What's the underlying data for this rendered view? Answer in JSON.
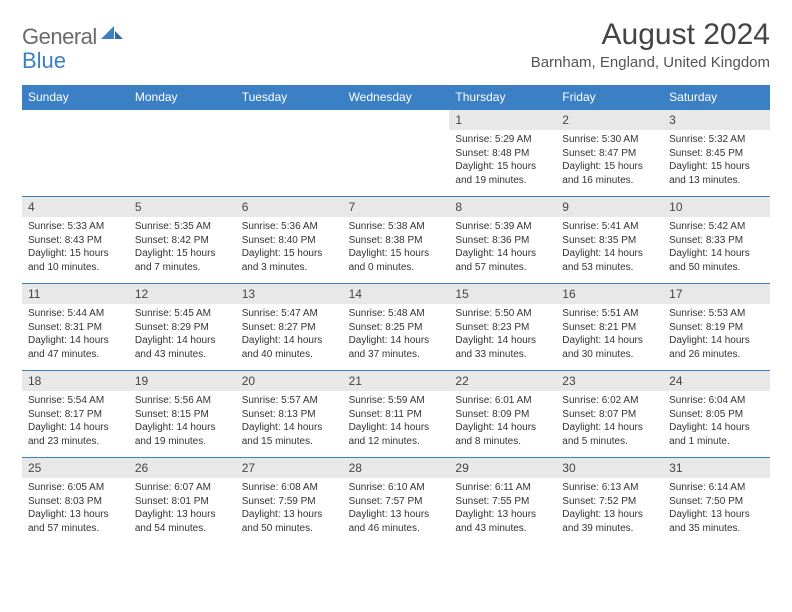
{
  "brand": {
    "text1": "General",
    "text2": "Blue"
  },
  "title": "August 2024",
  "location": "Barnham, England, United Kingdom",
  "colors": {
    "accent": "#3b7fc4",
    "header_bg": "#3b7fc4",
    "daynum_bg": "#e8e8e8",
    "text": "#333333",
    "logo_gray": "#6b6b6b"
  },
  "weekdays": [
    "Sunday",
    "Monday",
    "Tuesday",
    "Wednesday",
    "Thursday",
    "Friday",
    "Saturday"
  ],
  "weeks": [
    [
      {
        "n": "",
        "sunrise": "",
        "sunset": "",
        "daylight1": "",
        "daylight2": ""
      },
      {
        "n": "",
        "sunrise": "",
        "sunset": "",
        "daylight1": "",
        "daylight2": ""
      },
      {
        "n": "",
        "sunrise": "",
        "sunset": "",
        "daylight1": "",
        "daylight2": ""
      },
      {
        "n": "",
        "sunrise": "",
        "sunset": "",
        "daylight1": "",
        "daylight2": ""
      },
      {
        "n": "1",
        "sunrise": "Sunrise: 5:29 AM",
        "sunset": "Sunset: 8:48 PM",
        "daylight1": "Daylight: 15 hours",
        "daylight2": "and 19 minutes."
      },
      {
        "n": "2",
        "sunrise": "Sunrise: 5:30 AM",
        "sunset": "Sunset: 8:47 PM",
        "daylight1": "Daylight: 15 hours",
        "daylight2": "and 16 minutes."
      },
      {
        "n": "3",
        "sunrise": "Sunrise: 5:32 AM",
        "sunset": "Sunset: 8:45 PM",
        "daylight1": "Daylight: 15 hours",
        "daylight2": "and 13 minutes."
      }
    ],
    [
      {
        "n": "4",
        "sunrise": "Sunrise: 5:33 AM",
        "sunset": "Sunset: 8:43 PM",
        "daylight1": "Daylight: 15 hours",
        "daylight2": "and 10 minutes."
      },
      {
        "n": "5",
        "sunrise": "Sunrise: 5:35 AM",
        "sunset": "Sunset: 8:42 PM",
        "daylight1": "Daylight: 15 hours",
        "daylight2": "and 7 minutes."
      },
      {
        "n": "6",
        "sunrise": "Sunrise: 5:36 AM",
        "sunset": "Sunset: 8:40 PM",
        "daylight1": "Daylight: 15 hours",
        "daylight2": "and 3 minutes."
      },
      {
        "n": "7",
        "sunrise": "Sunrise: 5:38 AM",
        "sunset": "Sunset: 8:38 PM",
        "daylight1": "Daylight: 15 hours",
        "daylight2": "and 0 minutes."
      },
      {
        "n": "8",
        "sunrise": "Sunrise: 5:39 AM",
        "sunset": "Sunset: 8:36 PM",
        "daylight1": "Daylight: 14 hours",
        "daylight2": "and 57 minutes."
      },
      {
        "n": "9",
        "sunrise": "Sunrise: 5:41 AM",
        "sunset": "Sunset: 8:35 PM",
        "daylight1": "Daylight: 14 hours",
        "daylight2": "and 53 minutes."
      },
      {
        "n": "10",
        "sunrise": "Sunrise: 5:42 AM",
        "sunset": "Sunset: 8:33 PM",
        "daylight1": "Daylight: 14 hours",
        "daylight2": "and 50 minutes."
      }
    ],
    [
      {
        "n": "11",
        "sunrise": "Sunrise: 5:44 AM",
        "sunset": "Sunset: 8:31 PM",
        "daylight1": "Daylight: 14 hours",
        "daylight2": "and 47 minutes."
      },
      {
        "n": "12",
        "sunrise": "Sunrise: 5:45 AM",
        "sunset": "Sunset: 8:29 PM",
        "daylight1": "Daylight: 14 hours",
        "daylight2": "and 43 minutes."
      },
      {
        "n": "13",
        "sunrise": "Sunrise: 5:47 AM",
        "sunset": "Sunset: 8:27 PM",
        "daylight1": "Daylight: 14 hours",
        "daylight2": "and 40 minutes."
      },
      {
        "n": "14",
        "sunrise": "Sunrise: 5:48 AM",
        "sunset": "Sunset: 8:25 PM",
        "daylight1": "Daylight: 14 hours",
        "daylight2": "and 37 minutes."
      },
      {
        "n": "15",
        "sunrise": "Sunrise: 5:50 AM",
        "sunset": "Sunset: 8:23 PM",
        "daylight1": "Daylight: 14 hours",
        "daylight2": "and 33 minutes."
      },
      {
        "n": "16",
        "sunrise": "Sunrise: 5:51 AM",
        "sunset": "Sunset: 8:21 PM",
        "daylight1": "Daylight: 14 hours",
        "daylight2": "and 30 minutes."
      },
      {
        "n": "17",
        "sunrise": "Sunrise: 5:53 AM",
        "sunset": "Sunset: 8:19 PM",
        "daylight1": "Daylight: 14 hours",
        "daylight2": "and 26 minutes."
      }
    ],
    [
      {
        "n": "18",
        "sunrise": "Sunrise: 5:54 AM",
        "sunset": "Sunset: 8:17 PM",
        "daylight1": "Daylight: 14 hours",
        "daylight2": "and 23 minutes."
      },
      {
        "n": "19",
        "sunrise": "Sunrise: 5:56 AM",
        "sunset": "Sunset: 8:15 PM",
        "daylight1": "Daylight: 14 hours",
        "daylight2": "and 19 minutes."
      },
      {
        "n": "20",
        "sunrise": "Sunrise: 5:57 AM",
        "sunset": "Sunset: 8:13 PM",
        "daylight1": "Daylight: 14 hours",
        "daylight2": "and 15 minutes."
      },
      {
        "n": "21",
        "sunrise": "Sunrise: 5:59 AM",
        "sunset": "Sunset: 8:11 PM",
        "daylight1": "Daylight: 14 hours",
        "daylight2": "and 12 minutes."
      },
      {
        "n": "22",
        "sunrise": "Sunrise: 6:01 AM",
        "sunset": "Sunset: 8:09 PM",
        "daylight1": "Daylight: 14 hours",
        "daylight2": "and 8 minutes."
      },
      {
        "n": "23",
        "sunrise": "Sunrise: 6:02 AM",
        "sunset": "Sunset: 8:07 PM",
        "daylight1": "Daylight: 14 hours",
        "daylight2": "and 5 minutes."
      },
      {
        "n": "24",
        "sunrise": "Sunrise: 6:04 AM",
        "sunset": "Sunset: 8:05 PM",
        "daylight1": "Daylight: 14 hours",
        "daylight2": "and 1 minute."
      }
    ],
    [
      {
        "n": "25",
        "sunrise": "Sunrise: 6:05 AM",
        "sunset": "Sunset: 8:03 PM",
        "daylight1": "Daylight: 13 hours",
        "daylight2": "and 57 minutes."
      },
      {
        "n": "26",
        "sunrise": "Sunrise: 6:07 AM",
        "sunset": "Sunset: 8:01 PM",
        "daylight1": "Daylight: 13 hours",
        "daylight2": "and 54 minutes."
      },
      {
        "n": "27",
        "sunrise": "Sunrise: 6:08 AM",
        "sunset": "Sunset: 7:59 PM",
        "daylight1": "Daylight: 13 hours",
        "daylight2": "and 50 minutes."
      },
      {
        "n": "28",
        "sunrise": "Sunrise: 6:10 AM",
        "sunset": "Sunset: 7:57 PM",
        "daylight1": "Daylight: 13 hours",
        "daylight2": "and 46 minutes."
      },
      {
        "n": "29",
        "sunrise": "Sunrise: 6:11 AM",
        "sunset": "Sunset: 7:55 PM",
        "daylight1": "Daylight: 13 hours",
        "daylight2": "and 43 minutes."
      },
      {
        "n": "30",
        "sunrise": "Sunrise: 6:13 AM",
        "sunset": "Sunset: 7:52 PM",
        "daylight1": "Daylight: 13 hours",
        "daylight2": "and 39 minutes."
      },
      {
        "n": "31",
        "sunrise": "Sunrise: 6:14 AM",
        "sunset": "Sunset: 7:50 PM",
        "daylight1": "Daylight: 13 hours",
        "daylight2": "and 35 minutes."
      }
    ]
  ]
}
